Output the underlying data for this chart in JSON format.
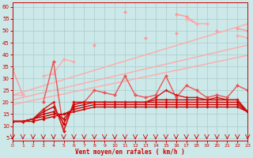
{
  "bg_color": "#cce8e8",
  "grid_color": "#aacccc",
  "xlabel": "Vent moyen/en rafales ( km/h )",
  "ylabel_ticks": [
    5,
    10,
    15,
    20,
    25,
    30,
    35,
    40,
    45,
    50,
    55,
    60
  ],
  "xticks": [
    0,
    1,
    2,
    3,
    4,
    5,
    6,
    7,
    8,
    9,
    10,
    11,
    12,
    13,
    14,
    15,
    16,
    17,
    18,
    19,
    20,
    21,
    22,
    23
  ],
  "xlim": [
    0,
    23
  ],
  "ylim": [
    4,
    62
  ],
  "series": [
    {
      "color": "#ffaaaa",
      "linewidth": 1.0,
      "markersize": 0,
      "values": [
        19,
        19.9,
        20.8,
        21.7,
        22.6,
        23.5,
        24.4,
        25.3,
        26.2,
        27.1,
        28,
        28.9,
        29.8,
        30.7,
        31.6,
        32.5,
        33.4,
        34.3,
        35.2,
        36.1,
        37,
        37.9,
        38.8,
        39.7
      ]
    },
    {
      "color": "#ffaaaa",
      "linewidth": 1.0,
      "markersize": 0,
      "values": [
        21,
        22,
        23,
        24,
        25,
        26,
        27,
        28,
        29,
        30,
        31,
        32,
        33,
        34,
        35,
        36,
        37,
        38,
        39,
        40,
        41,
        42,
        43,
        44
      ]
    },
    {
      "color": "#ffaaaa",
      "linewidth": 1.0,
      "markersize": 0,
      "values": [
        23,
        24.3,
        25.6,
        26.9,
        28.2,
        29.5,
        30.8,
        32.1,
        33.4,
        34.7,
        36,
        37.3,
        38.6,
        39.9,
        41.2,
        42.5,
        43.8,
        45.1,
        46.4,
        47.7,
        49,
        50.3,
        51.6,
        52.9
      ]
    },
    {
      "color": "#ff9999",
      "linewidth": 1.0,
      "markersize": 2.5,
      "values": [
        34,
        23,
        null,
        null,
        32,
        null,
        null,
        null,
        44,
        null,
        null,
        58,
        null,
        47,
        null,
        null,
        49,
        null,
        null,
        null,
        null,
        null,
        null,
        null
      ]
    },
    {
      "color": "#ff9999",
      "linewidth": 1.0,
      "markersize": 2.5,
      "values": [
        null,
        null,
        null,
        null,
        null,
        null,
        null,
        null,
        null,
        null,
        null,
        null,
        null,
        null,
        null,
        null,
        57,
        56,
        53,
        null,
        50,
        null,
        51,
        50
      ]
    },
    {
      "color": "#ffaaaa",
      "linewidth": 1.0,
      "markersize": 2.5,
      "values": [
        23,
        23,
        null,
        31,
        32,
        38,
        37,
        null,
        null,
        null,
        null,
        null,
        null,
        null,
        null,
        null,
        null,
        null,
        null,
        null,
        null,
        null,
        null,
        null
      ]
    },
    {
      "color": "#ffaaaa",
      "linewidth": 1.0,
      "markersize": 2.5,
      "values": [
        null,
        null,
        null,
        null,
        null,
        null,
        null,
        null,
        null,
        null,
        null,
        null,
        null,
        null,
        null,
        null,
        null,
        55,
        53,
        53,
        null,
        null,
        48,
        47
      ]
    },
    {
      "color": "#ee5555",
      "linewidth": 1.0,
      "markersize": 2.5,
      "values": [
        null,
        null,
        null,
        20,
        37,
        8,
        20,
        20,
        25,
        24,
        23,
        31,
        23,
        22,
        23,
        31,
        22,
        27,
        25,
        22,
        23,
        22,
        27,
        25
      ]
    },
    {
      "color": "#cc0000",
      "linewidth": 1.0,
      "markersize": 2.0,
      "values": [
        12,
        12,
        12,
        13,
        14,
        15,
        16,
        17,
        18,
        18,
        18,
        18,
        18,
        18,
        18,
        18,
        18,
        18,
        18,
        18,
        18,
        18,
        18,
        16
      ]
    },
    {
      "color": "#cc0000",
      "linewidth": 1.0,
      "markersize": 2.0,
      "values": [
        12,
        12,
        13,
        14,
        15,
        15,
        17,
        18,
        19,
        19,
        19,
        19,
        19,
        19,
        19,
        19,
        19,
        19,
        19,
        19,
        19,
        19,
        19,
        16
      ]
    },
    {
      "color": "#cc0000",
      "linewidth": 1.0,
      "markersize": 2.0,
      "values": [
        12,
        12,
        13,
        15,
        16,
        13,
        18,
        19,
        20,
        20,
        20,
        20,
        20,
        20,
        20,
        20,
        20,
        20,
        20,
        20,
        20,
        20,
        20,
        16
      ]
    },
    {
      "color": "#cc0000",
      "linewidth": 1.0,
      "markersize": 2.0,
      "values": [
        12,
        12,
        13,
        16,
        18,
        11,
        19,
        20,
        20,
        20,
        20,
        20,
        20,
        20,
        21,
        21,
        21,
        21,
        21,
        21,
        21,
        21,
        21,
        16
      ]
    },
    {
      "color": "#dd1111",
      "linewidth": 1.0,
      "markersize": 2.0,
      "values": [
        12,
        12,
        13,
        17,
        20,
        8,
        20,
        20,
        20,
        20,
        20,
        20,
        20,
        20,
        22,
        25,
        23,
        22,
        22,
        21,
        22,
        21,
        21,
        16
      ]
    }
  ]
}
